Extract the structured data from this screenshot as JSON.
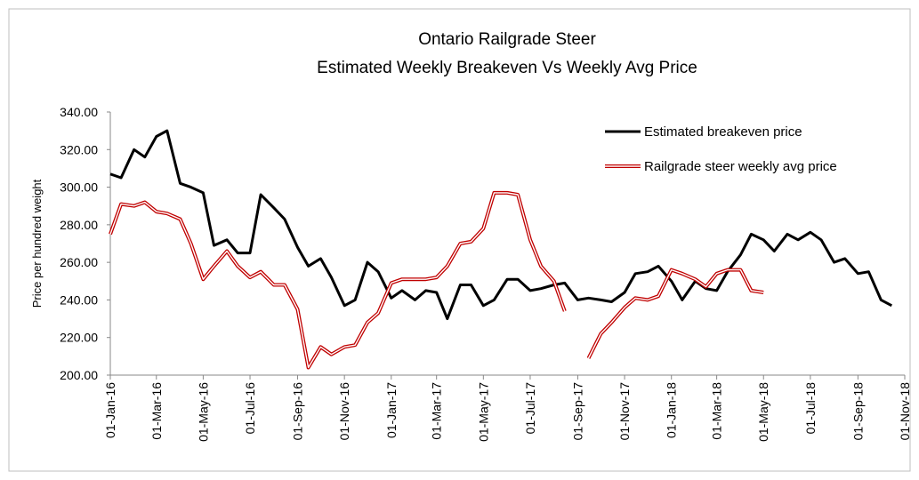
{
  "chart_data": {
    "type": "line",
    "title": [
      "Ontario Railgrade Steer",
      "Estimated Weekly Breakeven Vs Weekly Avg Price"
    ],
    "y_label": "Price per hundred weight",
    "x": [
      "2016-01-01",
      "2016-01-15",
      "2016-02-01",
      "2016-02-15",
      "2016-03-01",
      "2016-03-15",
      "2016-04-01",
      "2016-04-15",
      "2016-05-01",
      "2016-05-15",
      "2016-06-01",
      "2016-06-15",
      "2016-07-01",
      "2016-07-15",
      "2016-08-01",
      "2016-08-15",
      "2016-09-01",
      "2016-09-15",
      "2016-10-01",
      "2016-10-15",
      "2016-11-01",
      "2016-11-15",
      "2016-12-01",
      "2016-12-15",
      "2017-01-01",
      "2017-01-15",
      "2017-02-01",
      "2017-02-15",
      "2017-03-01",
      "2017-03-15",
      "2017-04-01",
      "2017-04-15",
      "2017-05-01",
      "2017-05-15",
      "2017-06-01",
      "2017-06-15",
      "2017-07-01",
      "2017-07-15",
      "2017-08-01",
      "2017-08-15",
      "2017-09-01",
      "2017-09-15",
      "2017-10-01",
      "2017-10-15",
      "2017-11-01",
      "2017-11-15",
      "2017-12-01",
      "2017-12-15",
      "2018-01-01",
      "2018-01-15",
      "2018-02-01",
      "2018-02-15",
      "2018-03-01",
      "2018-03-15",
      "2018-04-01",
      "2018-04-15",
      "2018-05-01",
      "2018-05-15",
      "2018-06-01",
      "2018-06-15",
      "2018-07-01",
      "2018-07-15",
      "2018-08-01",
      "2018-08-15",
      "2018-09-01",
      "2018-09-15",
      "2018-10-01",
      "2018-10-15"
    ],
    "series": [
      {
        "name": "Estimated breakeven price",
        "color": "#000000",
        "style": "solid",
        "values": [
          307,
          305,
          320,
          316,
          327,
          330,
          302,
          300,
          297,
          269,
          272,
          265,
          265,
          296,
          289,
          283,
          268,
          258,
          262,
          252,
          237,
          240,
          260,
          255,
          241,
          245,
          240,
          245,
          244,
          230,
          248,
          248,
          237,
          240,
          251,
          251,
          245,
          246,
          248,
          249,
          240,
          241,
          240,
          239,
          244,
          254,
          255,
          258,
          250,
          240,
          250,
          246,
          245,
          255,
          264,
          275,
          272,
          266,
          275,
          272,
          276,
          272,
          260,
          262,
          254,
          255,
          240,
          237
        ]
      },
      {
        "name": "Railgrade steer weekly avg price",
        "color": "#c00000",
        "style": "double",
        "values": [
          275,
          291,
          290,
          292,
          287,
          286,
          283,
          270,
          251,
          258,
          266,
          258,
          252,
          255,
          248,
          248,
          235,
          204,
          215,
          211,
          215,
          216,
          228,
          233,
          249,
          251,
          251,
          251,
          252,
          258,
          270,
          271,
          278,
          297,
          297,
          296,
          272,
          258,
          250,
          234,
          null,
          209,
          222,
          228,
          236,
          241,
          240,
          242,
          256,
          254,
          251,
          247,
          254,
          256,
          256,
          245,
          244,
          null,
          null,
          null,
          null,
          null,
          null,
          null,
          null,
          null,
          null,
          null
        ]
      }
    ],
    "xlim": [
      "2016-01-01",
      "2018-11-01"
    ],
    "xticks": [
      {
        "value": "2016-01-01",
        "label": "01-Jan-16"
      },
      {
        "value": "2016-03-01",
        "label": "01-Mar-16"
      },
      {
        "value": "2016-05-01",
        "label": "01-May-16"
      },
      {
        "value": "2016-07-01",
        "label": "01-Jul-16"
      },
      {
        "value": "2016-09-01",
        "label": "01-Sep-16"
      },
      {
        "value": "2016-11-01",
        "label": "01-Nov-16"
      },
      {
        "value": "2017-01-01",
        "label": "01-Jan-17"
      },
      {
        "value": "2017-03-01",
        "label": "01-Mar-17"
      },
      {
        "value": "2017-05-01",
        "label": "01-May-17"
      },
      {
        "value": "2017-07-01",
        "label": "01-Jul-17"
      },
      {
        "value": "2017-09-01",
        "label": "01-Sep-17"
      },
      {
        "value": "2017-11-01",
        "label": "01-Nov-17"
      },
      {
        "value": "2018-01-01",
        "label": "01-Jan-18"
      },
      {
        "value": "2018-03-01",
        "label": "01-Mar-18"
      },
      {
        "value": "2018-05-01",
        "label": "01-May-18"
      },
      {
        "value": "2018-07-01",
        "label": "01-Jul-18"
      },
      {
        "value": "2018-09-01",
        "label": "01-Sep-18"
      },
      {
        "value": "2018-11-01",
        "label": "01-Nov-18"
      }
    ],
    "ylim": [
      200,
      340
    ],
    "yticks": [
      {
        "value": 200,
        "label": "200.00"
      },
      {
        "value": 220,
        "label": "220.00"
      },
      {
        "value": 240,
        "label": "240.00"
      },
      {
        "value": 260,
        "label": "260.00"
      },
      {
        "value": 280,
        "label": "280.00"
      },
      {
        "value": 300,
        "label": "300.00"
      },
      {
        "value": 320,
        "label": "320.00"
      },
      {
        "value": 340,
        "label": "340.00"
      }
    ],
    "grid": false,
    "legend": "upper right"
  }
}
